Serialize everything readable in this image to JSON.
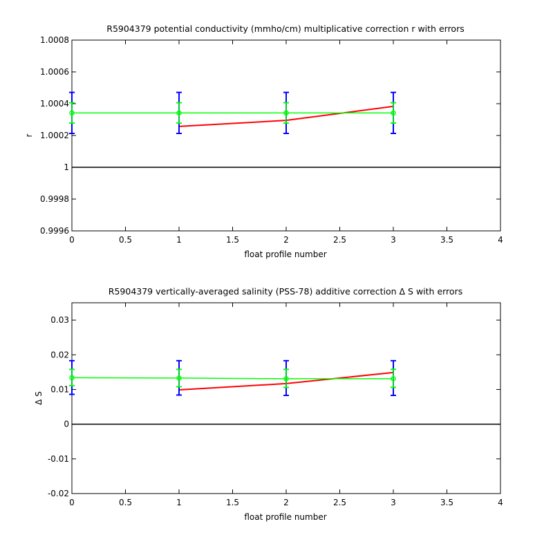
{
  "chart_data": [
    {
      "type": "line",
      "title": "R5904379 potential conductivity (mmho/cm) multiplicative correction r with errors",
      "xlabel": "float profile number",
      "ylabel": "r",
      "xlim": [
        0,
        4
      ],
      "ylim": [
        0.9996,
        1.0008
      ],
      "xticks": [
        0,
        0.5,
        1,
        1.5,
        2,
        2.5,
        3,
        3.5,
        4
      ],
      "xtick_labels": [
        "0",
        "0.5",
        "1",
        "1.5",
        "2",
        "2.5",
        "3",
        "3.5",
        "4"
      ],
      "yticks": [
        0.9996,
        0.9998,
        1,
        1.0002,
        1.0004,
        1.0006,
        1.0008
      ],
      "ytick_labels": [
        "0.9996",
        "0.9998",
        "1",
        "1.0002",
        "1.0004",
        "1.0006",
        "1.0008"
      ],
      "grid": false,
      "reference_line": {
        "y": 1,
        "color": "#000000"
      },
      "series": [
        {
          "color": "#ff0000",
          "x": [
            1,
            2,
            3
          ],
          "y": [
            1.000257,
            1.000295,
            1.000383
          ]
        },
        {
          "color": "#00ff00",
          "marker": "circle",
          "x": [
            0,
            1,
            2,
            3
          ],
          "y": [
            1.000342,
            1.000342,
            1.000342,
            1.000342
          ],
          "error_outer": {
            "color": "#0000ff",
            "low": [
              1.000213,
              1.000213,
              1.000213,
              1.000213
            ],
            "high": [
              1.000471,
              1.000471,
              1.000471,
              1.000471
            ]
          },
          "error_inner": {
            "color": "#00ff00",
            "low": [
              1.000278,
              1.000278,
              1.000278,
              1.000278
            ],
            "high": [
              1.000406,
              1.000406,
              1.000406,
              1.000406
            ]
          }
        }
      ]
    },
    {
      "type": "line",
      "title": "R5904379 vertically-averaged salinity (PSS-78) additive correction Δ S with errors",
      "xlabel": "float profile number",
      "ylabel": "Δ S",
      "xlim": [
        0,
        4
      ],
      "ylim": [
        -0.02,
        0.035
      ],
      "xticks": [
        0,
        0.5,
        1,
        1.5,
        2,
        2.5,
        3,
        3.5,
        4
      ],
      "xtick_labels": [
        "0",
        "0.5",
        "1",
        "1.5",
        "2",
        "2.5",
        "3",
        "3.5",
        "4"
      ],
      "yticks": [
        -0.02,
        -0.01,
        0,
        0.01,
        0.02,
        0.03
      ],
      "ytick_labels": [
        "-0.02",
        "-0.01",
        "0",
        "0.01",
        "0.02",
        "0.03"
      ],
      "grid": false,
      "reference_line": {
        "y": 0,
        "color": "#000000"
      },
      "series": [
        {
          "color": "#ff0000",
          "x": [
            1,
            2,
            3
          ],
          "y": [
            0.0099,
            0.0117,
            0.0149
          ]
        },
        {
          "color": "#00ff00",
          "marker": "circle",
          "x": [
            0,
            1,
            2,
            3
          ],
          "y": [
            0.0134,
            0.0133,
            0.0131,
            0.0131
          ],
          "error_outer": {
            "color": "#0000ff",
            "low": [
              0.0086,
              0.0084,
              0.0083,
              0.0083
            ],
            "high": [
              0.0183,
              0.0183,
              0.0183,
              0.0183
            ]
          },
          "error_inner": {
            "color": "#00ff00",
            "low": [
              0.0111,
              0.0108,
              0.0106,
              0.0106
            ],
            "high": [
              0.0158,
              0.0158,
              0.0158,
              0.0158
            ]
          }
        }
      ]
    }
  ]
}
